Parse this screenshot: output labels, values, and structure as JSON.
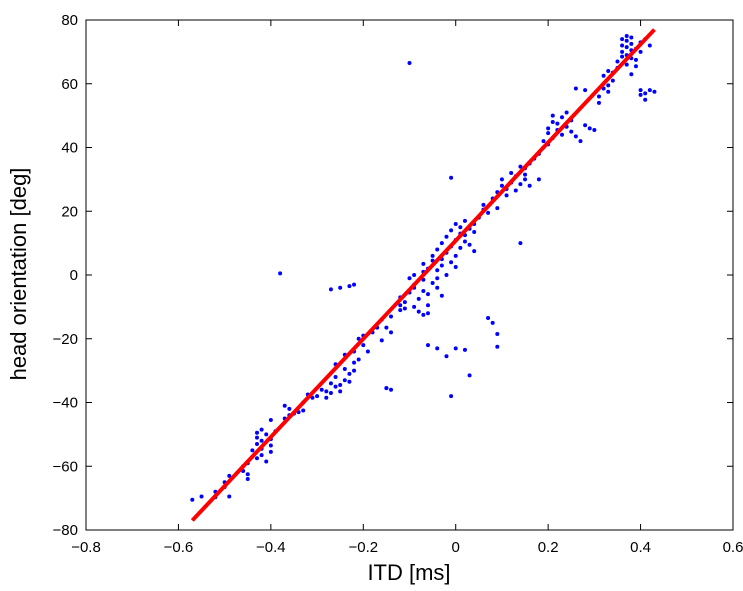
{
  "chart_data": {
    "type": "scatter",
    "title": "",
    "xlabel": "ITD [ms]",
    "ylabel": "head orientation [deg]",
    "xlim": [
      -0.8,
      0.6
    ],
    "ylim": [
      -80,
      80
    ],
    "xticks": [
      "−0.8",
      "−0.6",
      "−0.4",
      "−0.2",
      "0",
      "0.2",
      "0.4",
      "0.6"
    ],
    "yticks": [
      "−80",
      "−60",
      "−40",
      "−20",
      "0",
      "20",
      "40",
      "60",
      "80"
    ],
    "grid": false,
    "legend": "none",
    "colors": {
      "points": "#0000ff",
      "fit": "#ff0000",
      "axes": "#000000"
    },
    "fit_line": {
      "x": [
        -0.57,
        0.43
      ],
      "y": [
        -77,
        77
      ]
    },
    "series": [
      {
        "values": [
          [
            -0.57,
            -70.5
          ],
          [
            -0.55,
            -69.5
          ],
          [
            -0.52,
            -69.7
          ],
          [
            -0.52,
            -68.0
          ],
          [
            -0.5,
            -66.5
          ],
          [
            -0.5,
            -65.0
          ],
          [
            -0.49,
            -63.0
          ],
          [
            -0.49,
            -69.5
          ],
          [
            -0.46,
            -60.0
          ],
          [
            -0.46,
            -61.5
          ],
          [
            -0.45,
            -59.0
          ],
          [
            -0.45,
            -62.5
          ],
          [
            -0.45,
            -64.0
          ],
          [
            -0.44,
            -57.0
          ],
          [
            -0.44,
            -55.0
          ],
          [
            -0.43,
            -53.0
          ],
          [
            -0.43,
            -51.0
          ],
          [
            -0.43,
            -49.5
          ],
          [
            -0.43,
            -57.5
          ],
          [
            -0.42,
            -48.5
          ],
          [
            -0.42,
            -52.0
          ],
          [
            -0.42,
            -54.5
          ],
          [
            -0.42,
            -56.5
          ],
          [
            -0.41,
            -50.0
          ],
          [
            -0.41,
            -58.5
          ],
          [
            -0.4,
            -55.5
          ],
          [
            -0.4,
            -53.5
          ],
          [
            -0.4,
            -51.5
          ],
          [
            -0.4,
            -45.5
          ],
          [
            -0.39,
            -49.0
          ],
          [
            -0.37,
            -45.0
          ],
          [
            -0.37,
            -41.0
          ],
          [
            -0.36,
            -44.0
          ],
          [
            -0.36,
            -42.0
          ],
          [
            -0.35,
            -43.5
          ],
          [
            -0.34,
            -43.0
          ],
          [
            -0.33,
            -40.0
          ],
          [
            -0.33,
            -42.5
          ],
          [
            -0.32,
            -37.5
          ],
          [
            -0.31,
            -38.5
          ],
          [
            -0.3,
            -38.0
          ],
          [
            -0.29,
            -36.0
          ],
          [
            -0.28,
            -36.5
          ],
          [
            -0.28,
            -38.5
          ],
          [
            -0.27,
            -34.0
          ],
          [
            -0.27,
            -37.0
          ],
          [
            -0.26,
            -35.0
          ],
          [
            -0.26,
            -28.0
          ],
          [
            -0.26,
            -32.0
          ],
          [
            -0.25,
            -34.5
          ],
          [
            -0.25,
            -36.5
          ],
          [
            -0.24,
            -29.5
          ],
          [
            -0.24,
            -33.0
          ],
          [
            -0.24,
            -25.0
          ],
          [
            -0.23,
            -31.0
          ],
          [
            -0.23,
            -33.5
          ],
          [
            -0.22,
            -27.5
          ],
          [
            -0.22,
            -30.0
          ],
          [
            -0.22,
            -24.0
          ],
          [
            -0.21,
            -26.5
          ],
          [
            -0.21,
            -20.0
          ],
          [
            -0.2,
            -19.0
          ],
          [
            -0.2,
            -22.0
          ],
          [
            -0.19,
            -24.0
          ],
          [
            -0.18,
            -18.0
          ],
          [
            -0.17,
            -16.5
          ],
          [
            -0.16,
            -20.5
          ],
          [
            -0.16,
            -14.0
          ],
          [
            -0.15,
            -16.5
          ],
          [
            -0.15,
            -35.5
          ],
          [
            -0.14,
            -36.0
          ],
          [
            -0.14,
            -18.0
          ],
          [
            -0.14,
            -13.0
          ],
          [
            -0.12,
            -9.5
          ],
          [
            -0.12,
            -11.0
          ],
          [
            -0.12,
            -7.0
          ],
          [
            -0.11,
            -8.5
          ],
          [
            -0.11,
            -10.5
          ],
          [
            -0.1,
            -5.5
          ],
          [
            -0.1,
            -1.0
          ],
          [
            -0.09,
            0.0
          ],
          [
            -0.09,
            -3.0
          ],
          [
            -0.09,
            -4.0
          ],
          [
            -0.09,
            -10.0
          ],
          [
            -0.08,
            -11.5
          ],
          [
            -0.08,
            -7.5
          ],
          [
            -0.07,
            -1.5
          ],
          [
            -0.07,
            1.0
          ],
          [
            -0.07,
            -5.0
          ],
          [
            -0.07,
            3.5
          ],
          [
            -0.06,
            -12.0
          ],
          [
            -0.06,
            -9.5
          ],
          [
            -0.06,
            -6.0
          ],
          [
            -0.06,
            2.0
          ],
          [
            -0.05,
            4.5
          ],
          [
            -0.05,
            -2.5
          ],
          [
            -0.05,
            6.0
          ],
          [
            -0.04,
            -1.0
          ],
          [
            -0.04,
            1.5
          ],
          [
            -0.04,
            8.0
          ],
          [
            -0.04,
            -4.0
          ],
          [
            -0.03,
            5.0
          ],
          [
            -0.03,
            10.0
          ],
          [
            -0.03,
            -6.5
          ],
          [
            -0.03,
            3.0
          ],
          [
            -0.02,
            7.0
          ],
          [
            -0.02,
            0.0
          ],
          [
            -0.02,
            12.0
          ],
          [
            -0.01,
            9.0
          ],
          [
            -0.01,
            14.0
          ],
          [
            -0.01,
            4.0
          ],
          [
            0.0,
            6.0
          ],
          [
            0.0,
            11.0
          ],
          [
            0.0,
            16.0
          ],
          [
            0.0,
            2.5
          ],
          [
            0.01,
            13.0
          ],
          [
            0.01,
            8.5
          ],
          [
            0.01,
            15.0
          ],
          [
            0.02,
            10.5
          ],
          [
            0.02,
            12.5
          ],
          [
            0.02,
            17.0
          ],
          [
            0.03,
            14.5
          ],
          [
            0.03,
            9.5
          ],
          [
            0.04,
            13.5
          ],
          [
            0.04,
            16.0
          ],
          [
            0.04,
            7.5
          ],
          [
            0.05,
            18.0
          ],
          [
            0.06,
            20.5
          ],
          [
            0.06,
            22.0
          ],
          [
            0.07,
            19.5
          ],
          [
            0.08,
            24.0
          ],
          [
            0.09,
            26.0
          ],
          [
            0.09,
            21.0
          ],
          [
            0.1,
            28.0
          ],
          [
            0.1,
            30.0
          ],
          [
            0.11,
            27.0
          ],
          [
            0.11,
            25.0
          ],
          [
            0.12,
            29.0
          ],
          [
            0.12,
            32.0
          ],
          [
            0.13,
            31.0
          ],
          [
            0.13,
            26.5
          ],
          [
            0.14,
            34.0
          ],
          [
            0.14,
            28.5
          ],
          [
            0.15,
            33.5
          ],
          [
            0.15,
            31.5
          ],
          [
            0.15,
            30.0
          ],
          [
            0.16,
            35.0
          ],
          [
            0.16,
            28.0
          ],
          [
            0.17,
            36.5
          ],
          [
            0.18,
            38.0
          ],
          [
            0.19,
            40.0
          ],
          [
            0.19,
            42.0
          ],
          [
            0.2,
            44.5
          ],
          [
            0.2,
            41.0
          ],
          [
            0.2,
            46.0
          ],
          [
            0.21,
            43.0
          ],
          [
            0.21,
            48.0
          ],
          [
            0.21,
            50.0
          ],
          [
            0.22,
            45.5
          ],
          [
            0.22,
            47.5
          ],
          [
            0.23,
            49.5
          ],
          [
            0.23,
            44.0
          ],
          [
            0.24,
            51.0
          ],
          [
            0.24,
            46.5
          ],
          [
            0.25,
            48.5
          ],
          [
            0.25,
            45.0
          ],
          [
            0.26,
            43.5
          ],
          [
            0.27,
            42.0
          ],
          [
            0.28,
            47.0
          ],
          [
            0.29,
            46.0
          ],
          [
            0.3,
            45.5
          ],
          [
            0.31,
            54.0
          ],
          [
            0.31,
            56.0
          ],
          [
            0.32,
            58.5
          ],
          [
            0.32,
            60.0
          ],
          [
            0.32,
            62.5
          ],
          [
            0.33,
            57.5
          ],
          [
            0.33,
            59.5
          ],
          [
            0.33,
            64.0
          ],
          [
            0.34,
            61.0
          ],
          [
            0.34,
            63.5
          ],
          [
            0.35,
            65.0
          ],
          [
            0.35,
            67.0
          ],
          [
            0.36,
            68.5
          ],
          [
            0.36,
            70.0
          ],
          [
            0.36,
            72.0
          ],
          [
            0.36,
            74.0
          ],
          [
            0.37,
            66.0
          ],
          [
            0.37,
            69.0
          ],
          [
            0.37,
            71.5
          ],
          [
            0.37,
            73.5
          ],
          [
            0.37,
            75.0
          ],
          [
            0.38,
            63.0
          ],
          [
            0.38,
            68.0
          ],
          [
            0.38,
            70.5
          ],
          [
            0.38,
            72.5
          ],
          [
            0.38,
            74.5
          ],
          [
            0.39,
            65.5
          ],
          [
            0.39,
            67.5
          ],
          [
            0.4,
            56.5
          ],
          [
            0.4,
            58.0
          ],
          [
            0.41,
            55.0
          ],
          [
            0.41,
            57.0
          ],
          [
            0.42,
            58.0
          ],
          [
            0.43,
            57.5
          ],
          [
            0.4,
            70.0
          ],
          [
            0.39,
            71.0
          ],
          [
            0.4,
            73.0
          ],
          [
            0.41,
            74.0
          ],
          [
            0.42,
            72.0
          ],
          [
            -0.38,
            0.5
          ],
          [
            -0.27,
            -4.5
          ],
          [
            -0.25,
            -4.0
          ],
          [
            -0.23,
            -3.5
          ],
          [
            -0.22,
            -3.0
          ],
          [
            -0.1,
            66.5
          ],
          [
            -0.07,
            -12.5
          ],
          [
            -0.06,
            -22.0
          ],
          [
            -0.04,
            -23.0
          ],
          [
            -0.02,
            -25.5
          ],
          [
            -0.01,
            -38.0
          ],
          [
            0.0,
            -23.0
          ],
          [
            0.02,
            -23.5
          ],
          [
            0.03,
            -31.5
          ],
          [
            0.08,
            -15.0
          ],
          [
            0.07,
            -13.5
          ],
          [
            0.09,
            -22.5
          ],
          [
            0.09,
            -18.5
          ],
          [
            0.14,
            10.0
          ],
          [
            0.18,
            30.0
          ],
          [
            0.26,
            58.5
          ],
          [
            0.28,
            58.0
          ],
          [
            -0.15,
            -35.5
          ],
          [
            -0.01,
            30.5
          ]
        ]
      }
    ]
  }
}
